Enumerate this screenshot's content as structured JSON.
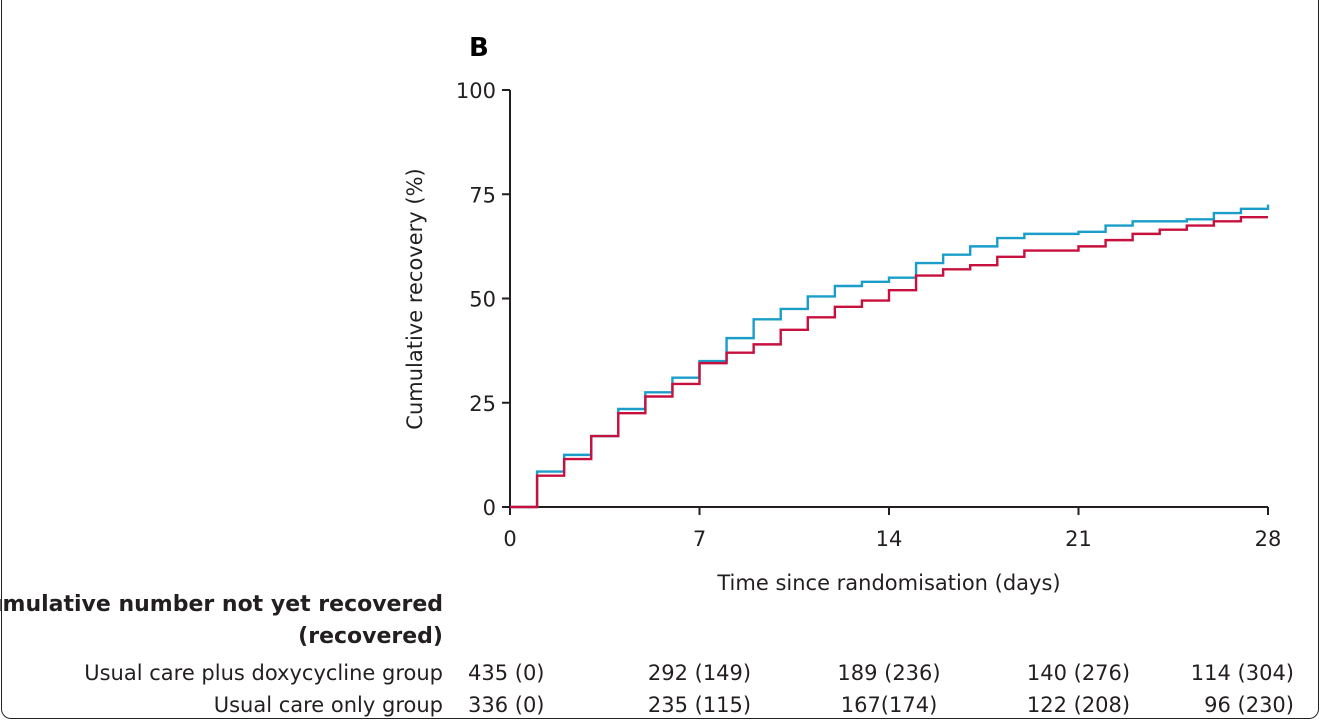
{
  "chart_data": {
    "type": "line",
    "panel_label": "B",
    "title": "",
    "xlabel": "Time since randomisation (days)",
    "ylabel": "Cumulative recovery (%)",
    "xlim": [
      0,
      28
    ],
    "ylim": [
      0,
      100
    ],
    "x_ticks": [
      0,
      7,
      14,
      21,
      28
    ],
    "y_ticks": [
      0,
      25,
      50,
      75,
      100
    ],
    "grid": false,
    "legend": "none",
    "series": [
      {
        "color": "#1a9ec9",
        "step": true,
        "x": [
          0,
          1,
          2,
          3,
          4,
          5,
          6,
          7,
          8,
          9,
          10,
          11,
          12,
          13,
          14,
          15,
          16,
          17,
          18,
          19,
          20,
          21,
          22,
          23,
          24,
          25,
          26,
          27,
          28
        ],
        "y": [
          0,
          8.5,
          12.5,
          17,
          23.5,
          27.5,
          31,
          35,
          40.5,
          45,
          47.5,
          50.5,
          53,
          54,
          55,
          58.5,
          60.5,
          62.5,
          64.5,
          65.5,
          65.5,
          66,
          67.5,
          68.5,
          68.5,
          69,
          70.5,
          71.5,
          72.5
        ]
      },
      {
        "color": "#c8103e",
        "step": true,
        "x": [
          0,
          1,
          2,
          3,
          4,
          5,
          6,
          7,
          8,
          9,
          10,
          11,
          12,
          13,
          14,
          15,
          16,
          17,
          18,
          19,
          20,
          21,
          22,
          23,
          24,
          25,
          26,
          27,
          28
        ],
        "y": [
          0,
          7.5,
          11.5,
          17,
          22.5,
          26.5,
          29.5,
          34.5,
          37,
          39,
          42.5,
          45.5,
          48,
          49.5,
          52,
          55.5,
          57,
          58,
          60,
          61.5,
          61.5,
          62.5,
          64,
          65.5,
          66.5,
          67.5,
          68.5,
          69.5,
          69.5
        ]
      }
    ]
  },
  "risk_table": {
    "header_line1": "Cumulative number not yet recovered",
    "header_line2": "(recovered)",
    "rows": [
      {
        "label": "Usual care plus doxycycline group",
        "values": [
          "435 (0)",
          "292 (149)",
          "189 (236)",
          "140 (276)",
          "114 (304)"
        ]
      },
      {
        "label": "Usual care only group",
        "values": [
          "336 (0)",
          "235 (115)",
          "167(174)",
          "122 (208)",
          "96 (230)"
        ]
      }
    ]
  }
}
